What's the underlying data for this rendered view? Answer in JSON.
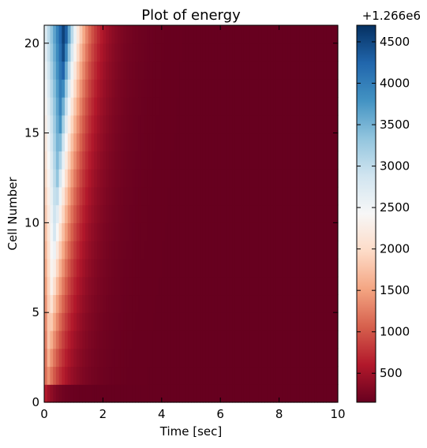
{
  "chart_data": {
    "type": "heatmap",
    "title": "Plot of energy",
    "xlabel": "Time [sec]",
    "ylabel": "Cell Number",
    "xlim": [
      0,
      10
    ],
    "ylim": [
      0,
      21
    ],
    "x_ticks": [
      0,
      2,
      4,
      6,
      8,
      10
    ],
    "x_tick_labels": [
      "0",
      "2",
      "4",
      "6",
      "8",
      "10"
    ],
    "y_ticks": [
      0,
      5,
      10,
      15,
      20
    ],
    "y_tick_labels": [
      "0",
      "5",
      "10",
      "15",
      "20"
    ],
    "n_cells": 21,
    "n_time_steps": 100,
    "time_step": 0.1,
    "colormap": "RdBu",
    "colormap_stops": [
      "#67001f",
      "#b2182b",
      "#d6604d",
      "#f4a582",
      "#fddbc7",
      "#f7f7f7",
      "#d1e5f0",
      "#92c5de",
      "#4393c3",
      "#2166ac",
      "#053061"
    ],
    "colorbar": {
      "offset_label": "+1.266e6",
      "vmin": 150,
      "vmax": 4700,
      "ticks": [
        500,
        1000,
        1500,
        2000,
        2500,
        3000,
        3500,
        4000,
        4500
      ],
      "tick_labels": [
        "500",
        "1000",
        "1500",
        "2000",
        "2500",
        "3000",
        "3500",
        "4000",
        "4500"
      ]
    },
    "value_model": {
      "description_of_values": "energy minus 1.266e6 per cell (row) and time step (column)",
      "baseline": 150,
      "cell_0_peak": 700,
      "peak_value_by_cell_top": 4700,
      "peak_value_by_cell_bottom": 1500,
      "peak_time_by_cell_top": 0.7,
      "peak_time_by_cell_bottom": 0.1,
      "decay_time_scale_sec": 0.55
    }
  }
}
